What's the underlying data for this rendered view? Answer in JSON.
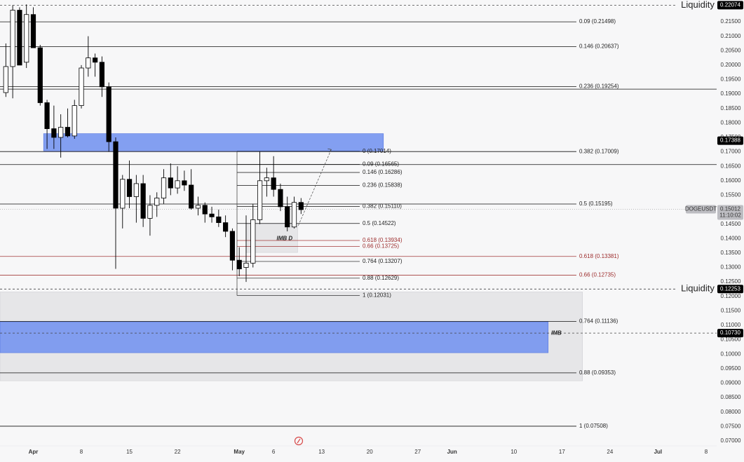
{
  "chart_data": {
    "type": "candlestick",
    "symbol": "DOGEUSDT",
    "colors": {
      "background": "#f7f7f8",
      "bull_body": "#ffffff",
      "bear_body": "#000000",
      "wick": "#000000",
      "blue_zone": "#6f8ff0",
      "gray_zone": "#e3e3e6",
      "red_level": "#a33a3a"
    },
    "price_axis": {
      "range": [
        0.069,
        0.2218
      ],
      "ticks": [
        "0.21500",
        "0.21000",
        "0.20500",
        "0.20000",
        "0.19500",
        "0.19000",
        "0.18500",
        "0.18000",
        "0.17500",
        "0.17000",
        "0.16500",
        "0.16000",
        "0.15500",
        "0.15000",
        "0.14500",
        "0.14000",
        "0.13500",
        "0.13000",
        "0.12500",
        "0.12000",
        "0.11500",
        "0.11000",
        "0.10500",
        "0.10000",
        "0.09500",
        "0.09000",
        "0.08500",
        "0.08000",
        "0.07500",
        "0.07000"
      ]
    },
    "time_axis": {
      "labels": [
        {
          "text": "Apr",
          "day": 0,
          "bold": true
        },
        {
          "text": "8",
          "day": 7,
          "bold": false
        },
        {
          "text": "15",
          "day": 14,
          "bold": false
        },
        {
          "text": "22",
          "day": 21,
          "bold": false
        },
        {
          "text": "May",
          "day": 30,
          "bold": true
        },
        {
          "text": "6",
          "day": 35,
          "bold": false
        },
        {
          "text": "13",
          "day": 42,
          "bold": false
        },
        {
          "text": "20",
          "day": 49,
          "bold": false
        },
        {
          "text": "27",
          "day": 56,
          "bold": false
        },
        {
          "text": "Jun",
          "day": 61,
          "bold": true
        },
        {
          "text": "10",
          "day": 70,
          "bold": false
        },
        {
          "text": "17",
          "day": 77,
          "bold": false
        },
        {
          "text": "24",
          "day": 84,
          "bold": false
        },
        {
          "text": "Jul",
          "day": 91,
          "bold": true
        },
        {
          "text": "8",
          "day": 98,
          "bold": false
        }
      ]
    },
    "price_tags": [
      {
        "text": "0.22074",
        "value": 0.22074,
        "color": "#000000"
      },
      {
        "text": "0.17388",
        "value": 0.17388,
        "color": "#000000"
      },
      {
        "text": "0.12253",
        "value": 0.12253,
        "color": "#000000"
      },
      {
        "text": "0.10730",
        "value": 0.1073,
        "color": "#000000"
      }
    ],
    "current_price": {
      "symbol": "DOGEUSDT",
      "value": "0.15012",
      "countdown": "11:10:02",
      "price": 0.15012
    },
    "candles": [
      {
        "day": -4,
        "o": 0.1905,
        "h": 0.2075,
        "l": 0.189,
        "c": 0.1995
      },
      {
        "day": -3,
        "o": 0.1995,
        "h": 0.2207,
        "l": 0.1885,
        "c": 0.219
      },
      {
        "day": -2,
        "o": 0.219,
        "h": 0.22,
        "l": 0.2,
        "c": 0.2
      },
      {
        "day": -1,
        "o": 0.201,
        "h": 0.221,
        "l": 0.199,
        "c": 0.2175
      },
      {
        "day": 0,
        "o": 0.2175,
        "h": 0.22,
        "l": 0.206,
        "c": 0.206
      },
      {
        "day": 1,
        "o": 0.206,
        "h": 0.207,
        "l": 0.186,
        "c": 0.187
      },
      {
        "day": 2,
        "o": 0.187,
        "h": 0.188,
        "l": 0.171,
        "c": 0.178
      },
      {
        "day": 3,
        "o": 0.178,
        "h": 0.186,
        "l": 0.171,
        "c": 0.175
      },
      {
        "day": 4,
        "o": 0.175,
        "h": 0.183,
        "l": 0.168,
        "c": 0.1785
      },
      {
        "day": 5,
        "o": 0.1785,
        "h": 0.185,
        "l": 0.175,
        "c": 0.1755
      },
      {
        "day": 6,
        "o": 0.1755,
        "h": 0.188,
        "l": 0.1745,
        "c": 0.186
      },
      {
        "day": 7,
        "o": 0.186,
        "h": 0.2,
        "l": 0.185,
        "c": 0.199
      },
      {
        "day": 8,
        "o": 0.199,
        "h": 0.21,
        "l": 0.196,
        "c": 0.2025
      },
      {
        "day": 9,
        "o": 0.2025,
        "h": 0.204,
        "l": 0.196,
        "c": 0.201
      },
      {
        "day": 10,
        "o": 0.201,
        "h": 0.203,
        "l": 0.189,
        "c": 0.1925
      },
      {
        "day": 11,
        "o": 0.1925,
        "h": 0.194,
        "l": 0.17,
        "c": 0.1735
      },
      {
        "day": 12,
        "o": 0.1735,
        "h": 0.175,
        "l": 0.1295,
        "c": 0.1505
      },
      {
        "day": 13,
        "o": 0.1505,
        "h": 0.162,
        "l": 0.1435,
        "c": 0.1605
      },
      {
        "day": 14,
        "o": 0.1605,
        "h": 0.167,
        "l": 0.1505,
        "c": 0.1545
      },
      {
        "day": 15,
        "o": 0.1545,
        "h": 0.162,
        "l": 0.1455,
        "c": 0.159
      },
      {
        "day": 16,
        "o": 0.159,
        "h": 0.162,
        "l": 0.144,
        "c": 0.147
      },
      {
        "day": 17,
        "o": 0.147,
        "h": 0.155,
        "l": 0.141,
        "c": 0.1515
      },
      {
        "day": 18,
        "o": 0.1515,
        "h": 0.156,
        "l": 0.1475,
        "c": 0.154
      },
      {
        "day": 19,
        "o": 0.154,
        "h": 0.164,
        "l": 0.152,
        "c": 0.161
      },
      {
        "day": 20,
        "o": 0.161,
        "h": 0.166,
        "l": 0.155,
        "c": 0.1575
      },
      {
        "day": 21,
        "o": 0.1575,
        "h": 0.165,
        "l": 0.1555,
        "c": 0.16
      },
      {
        "day": 22,
        "o": 0.16,
        "h": 0.1635,
        "l": 0.1565,
        "c": 0.1585
      },
      {
        "day": 23,
        "o": 0.1585,
        "h": 0.164,
        "l": 0.15,
        "c": 0.1505
      },
      {
        "day": 24,
        "o": 0.1505,
        "h": 0.1545,
        "l": 0.148,
        "c": 0.1515
      },
      {
        "day": 25,
        "o": 0.1515,
        "h": 0.1525,
        "l": 0.1455,
        "c": 0.1485
      },
      {
        "day": 26,
        "o": 0.1485,
        "h": 0.151,
        "l": 0.1455,
        "c": 0.1475
      },
      {
        "day": 27,
        "o": 0.1475,
        "h": 0.15,
        "l": 0.144,
        "c": 0.1455
      },
      {
        "day": 28,
        "o": 0.1455,
        "h": 0.148,
        "l": 0.1405,
        "c": 0.1425
      },
      {
        "day": 29,
        "o": 0.1425,
        "h": 0.1435,
        "l": 0.129,
        "c": 0.1325
      },
      {
        "day": 30,
        "o": 0.1325,
        "h": 0.137,
        "l": 0.127,
        "c": 0.1295
      },
      {
        "day": 31,
        "o": 0.13,
        "h": 0.148,
        "l": 0.125,
        "c": 0.1315
      },
      {
        "day": 32,
        "o": 0.1315,
        "h": 0.152,
        "l": 0.13,
        "c": 0.1465
      },
      {
        "day": 33,
        "o": 0.1465,
        "h": 0.17,
        "l": 0.145,
        "c": 0.16
      },
      {
        "day": 34,
        "o": 0.16,
        "h": 0.1645,
        "l": 0.1545,
        "c": 0.161
      },
      {
        "day": 35,
        "o": 0.161,
        "h": 0.1685,
        "l": 0.1545,
        "c": 0.157
      },
      {
        "day": 36,
        "o": 0.157,
        "h": 0.159,
        "l": 0.1495,
        "c": 0.151
      },
      {
        "day": 37,
        "o": 0.151,
        "h": 0.1545,
        "l": 0.1425,
        "c": 0.144
      },
      {
        "day": 38,
        "o": 0.144,
        "h": 0.1545,
        "l": 0.1435,
        "c": 0.1525
      },
      {
        "day": 39,
        "o": 0.1525,
        "h": 0.154,
        "l": 0.1485,
        "c": 0.15
      }
    ],
    "zones": [
      {
        "kind": "blue",
        "d0": 1.5,
        "d1": 51,
        "top": 0.1763,
        "bot": 0.1703
      },
      {
        "kind": "gray",
        "d0": 31,
        "d1": 38.5,
        "top": 0.145,
        "bot": 0.1352
      },
      {
        "kind": "gray",
        "d0": -6,
        "d1": 80,
        "top": 0.1215,
        "bot": 0.0908
      },
      {
        "kind": "blue",
        "d0": -6,
        "d1": 75,
        "top": 0.1112,
        "bot": 0.1005
      }
    ],
    "fib_right": [
      {
        "label": "0.09 (0.21498)",
        "value": 0.21498,
        "red": false
      },
      {
        "label": "0.146 (0.20637)",
        "value": 0.20637,
        "red": false
      },
      {
        "label": "0.236 (0.19254)",
        "value": 0.19254,
        "red": false
      },
      {
        "label": "0.382 (0.17009)",
        "value": 0.17009,
        "red": false
      },
      {
        "label": "0.5 (0.15195)",
        "value": 0.15195,
        "red": false
      },
      {
        "label": "0.618 (0.13381)",
        "value": 0.13381,
        "red": true
      },
      {
        "label": "0.66 (0.12735)",
        "value": 0.12735,
        "red": true
      },
      {
        "label": "0.764 (0.11136)",
        "value": 0.11136,
        "red": false
      },
      {
        "label": "0.88 (0.09353)",
        "value": 0.09353,
        "red": false
      },
      {
        "label": "1 (0.07508)",
        "value": 0.07508,
        "red": false
      }
    ],
    "fib_inner": [
      {
        "label": "0 (0.17014)",
        "value": 0.17014,
        "red": false
      },
      {
        "label": "0.09 (0.16565)",
        "value": 0.16565,
        "red": false
      },
      {
        "label": "0.146 (0.16286)",
        "value": 0.16286,
        "red": false
      },
      {
        "label": "0.236 (0.15838)",
        "value": 0.15838,
        "red": false
      },
      {
        "label": "0.382 (0.15110)",
        "value": 0.1511,
        "red": false
      },
      {
        "label": "0.5 (0.14522)",
        "value": 0.14522,
        "red": false
      },
      {
        "label": "0.618 (0.13934)",
        "value": 0.13934,
        "red": true
      },
      {
        "label": "0.66 (0.13725)",
        "value": 0.13725,
        "red": true
      },
      {
        "label": "0.764 (0.13207)",
        "value": 0.13207,
        "red": false
      },
      {
        "label": "0.88 (0.12629)",
        "value": 0.12629,
        "red": false
      },
      {
        "label": "1 (0.12031)",
        "value": 0.12031,
        "red": false
      }
    ],
    "full_lines": [
      0.1917,
      0.1656
    ],
    "liquidity": [
      {
        "label": "Liquidity",
        "value": 0.22074
      },
      {
        "label": "Liquidity",
        "value": 0.12253
      }
    ],
    "imb_labels": [
      {
        "text": "IMB D",
        "value": 0.14,
        "day": 36.6
      },
      {
        "text": "IMB",
        "value": 0.1072,
        "day": 76.2
      }
    ],
    "projection": {
      "from_day": 38.6,
      "from_price": 0.1445,
      "to_day": 43.4,
      "to_price": 0.1708
    },
    "logo_icon": "tradingview-logo-icon"
  }
}
